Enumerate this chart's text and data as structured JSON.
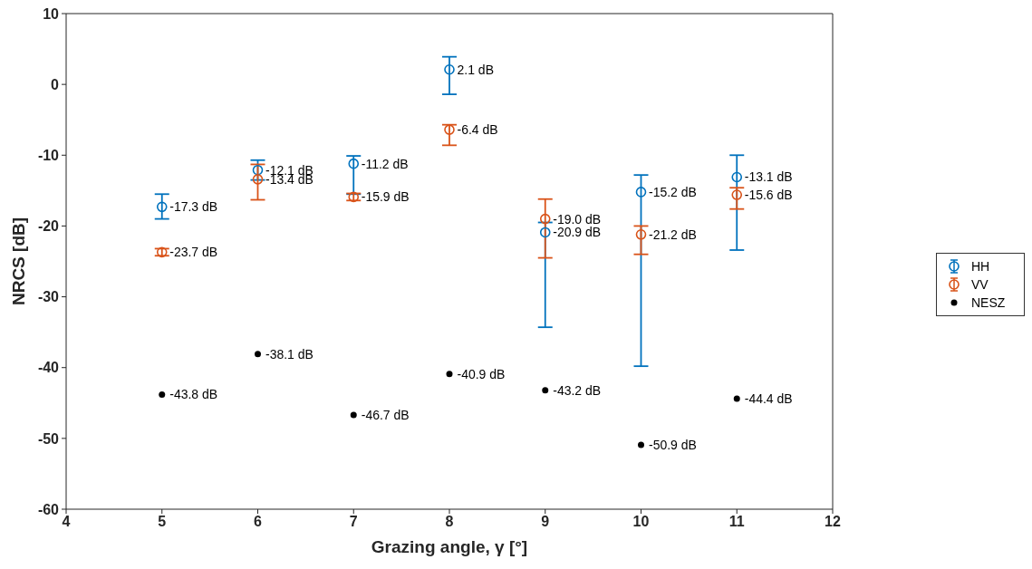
{
  "chart_data": {
    "type": "scatter",
    "xlabel": "Grazing angle, γ [°]",
    "ylabel": "NRCS [dB]",
    "x": [
      5,
      6,
      7,
      8,
      9,
      10,
      11
    ],
    "series": [
      {
        "name": "HH",
        "color": "#0072bd",
        "marker": "circle",
        "values": [
          -17.3,
          -12.1,
          -11.2,
          2.1,
          -20.9,
          -15.2,
          -13.1
        ],
        "errors": [
          [
            -19.0,
            -15.5
          ],
          [
            -13.5,
            -10.7
          ],
          [
            -15.5,
            -10.1
          ],
          [
            -1.4,
            3.9
          ],
          [
            -34.3,
            -19.5
          ],
          [
            -39.8,
            -12.8
          ],
          [
            -23.4,
            -10.0
          ]
        ],
        "value_labels": [
          "-17.3 dB",
          "-12.1 dB",
          "-11.2 dB",
          "2.1 dB",
          "-20.9 dB",
          "-15.2 dB",
          "-13.1 dB"
        ]
      },
      {
        "name": "VV",
        "color": "#d95319",
        "marker": "circle",
        "values": [
          -23.7,
          -13.4,
          -15.9,
          -6.4,
          -19.0,
          -21.2,
          -15.6
        ],
        "errors": [
          [
            -24.2,
            -23.2
          ],
          [
            -16.3,
            -11.3
          ],
          [
            -16.4,
            -15.4
          ],
          [
            -8.6,
            -5.7
          ],
          [
            -24.5,
            -16.2
          ],
          [
            -24.0,
            -20.0
          ],
          [
            -17.6,
            -14.6
          ]
        ],
        "value_labels": [
          "-23.7 dB",
          "-13.4 dB",
          "-15.9 dB",
          "-6.4 dB",
          "-19.0 dB",
          "-21.2 dB",
          "-15.6 dB"
        ]
      },
      {
        "name": "NESZ",
        "color": "#000000",
        "marker": "filled circle",
        "values": [
          -43.8,
          -38.1,
          -46.7,
          -40.9,
          -43.2,
          -50.9,
          -44.4
        ],
        "value_labels": [
          "-43.8 dB",
          "-38.1 dB",
          "-46.7 dB",
          "-40.9 dB",
          "-43.2 dB",
          "-50.9 dB",
          "-44.4 dB"
        ]
      }
    ],
    "xlim": [
      4,
      12
    ],
    "xticks": [
      4,
      5,
      6,
      7,
      8,
      9,
      10,
      11,
      12
    ],
    "ylim": [
      -60,
      10
    ],
    "yticks": [
      -60,
      -50,
      -40,
      -30,
      -20,
      -10,
      0,
      10
    ],
    "grid": false,
    "legend": "right"
  }
}
